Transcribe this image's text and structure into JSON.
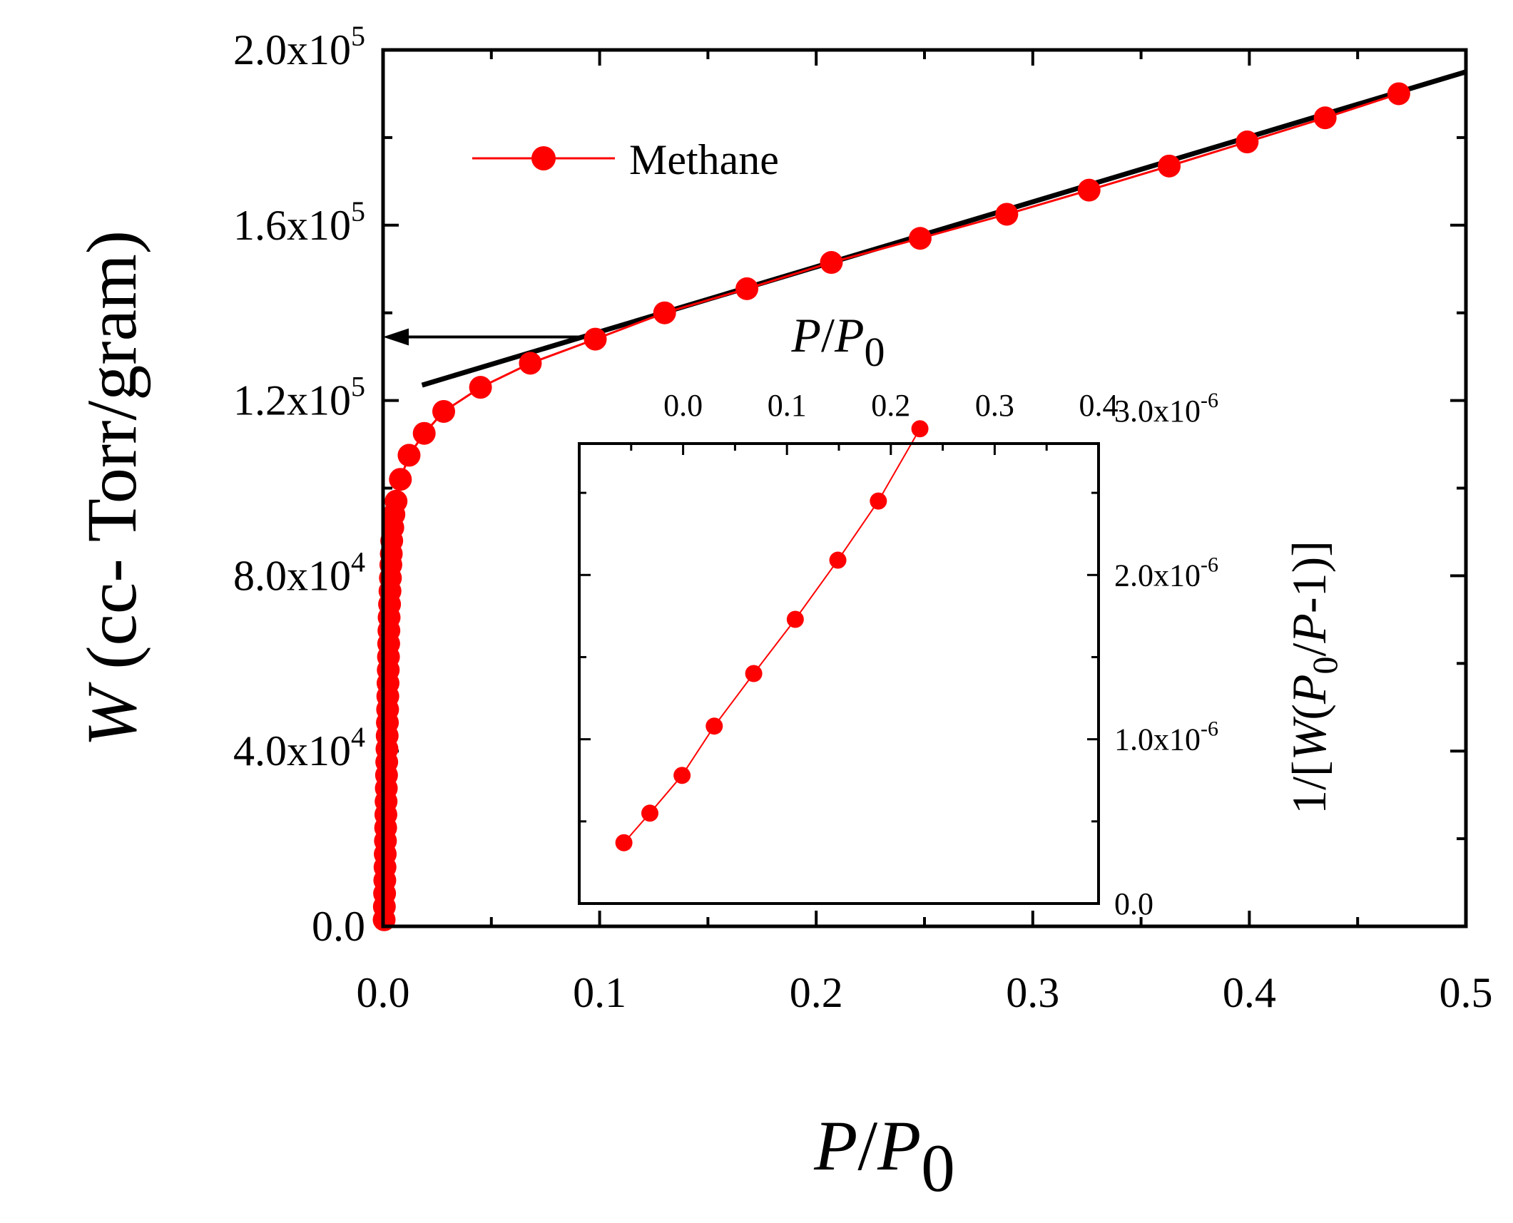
{
  "chart_data": [
    {
      "id": "main",
      "type": "line",
      "xlabel": {
        "italic": "P",
        "sep": "/",
        "italic2": "P",
        "sub": "0"
      },
      "ylabel": {
        "italic": "W",
        "rest": " (cc- Torr/gram)"
      },
      "xlim": [
        0.0,
        0.5
      ],
      "ylim": [
        0,
        200000
      ],
      "x_ticks": [
        "0.0",
        "0.1",
        "0.2",
        "0.3",
        "0.4",
        "0.5"
      ],
      "y_ticks": [
        {
          "base": "0.0",
          "exp": ""
        },
        {
          "base": "4.0x10",
          "exp": "4"
        },
        {
          "base": "8.0x10",
          "exp": "4"
        },
        {
          "base": "1.2x10",
          "exp": "5"
        },
        {
          "base": "1.6x10",
          "exp": "5"
        },
        {
          "base": "2.0x10",
          "exp": "5"
        }
      ],
      "series": [
        {
          "name": "Methane",
          "color": "#ff0000",
          "points": [
            [
              0.0005,
              1500
            ],
            [
              0.0006,
              4500
            ],
            [
              0.0007,
              7500
            ],
            [
              0.0008,
              10500
            ],
            [
              0.0009,
              13500
            ],
            [
              0.001,
              16500
            ],
            [
              0.0011,
              19500
            ],
            [
              0.0012,
              22500
            ],
            [
              0.0013,
              25500
            ],
            [
              0.0014,
              28500
            ],
            [
              0.0015,
              31500
            ],
            [
              0.0016,
              34500
            ],
            [
              0.0017,
              37500
            ],
            [
              0.0018,
              40500
            ],
            [
              0.0019,
              43500
            ],
            [
              0.002,
              46500
            ],
            [
              0.0021,
              49500
            ],
            [
              0.0022,
              52500
            ],
            [
              0.0023,
              55500
            ],
            [
              0.0024,
              58500
            ],
            [
              0.0025,
              61500
            ],
            [
              0.0026,
              64500
            ],
            [
              0.0027,
              67500
            ],
            [
              0.0028,
              70500
            ],
            [
              0.003,
              73500
            ],
            [
              0.0032,
              76500
            ],
            [
              0.0034,
              79500
            ],
            [
              0.0036,
              82500
            ],
            [
              0.0038,
              85000
            ],
            [
              0.004,
              88000
            ],
            [
              0.0045,
              91000
            ],
            [
              0.005,
              94000
            ],
            [
              0.006,
              97000
            ],
            [
              0.008,
              102000
            ],
            [
              0.012,
              107500
            ],
            [
              0.019,
              112500
            ],
            [
              0.028,
              117500
            ],
            [
              0.045,
              123000
            ],
            [
              0.068,
              128500
            ],
            [
              0.098,
              134000
            ],
            [
              0.13,
              140000
            ],
            [
              0.168,
              145500
            ],
            [
              0.207,
              151500
            ],
            [
              0.248,
              157000
            ],
            [
              0.288,
              162500
            ],
            [
              0.326,
              168000
            ],
            [
              0.363,
              173500
            ],
            [
              0.399,
              179000
            ],
            [
              0.435,
              184500
            ],
            [
              0.469,
              190000
            ]
          ]
        }
      ],
      "fit_line": {
        "color": "#000000",
        "points": [
          [
            0.018,
            123500
          ],
          [
            0.5,
            195000
          ]
        ]
      },
      "arrow": {
        "from": [
          0.092,
          134500
        ],
        "to": [
          0.0,
          134500
        ]
      },
      "legend": {
        "position": "top-left"
      }
    },
    {
      "id": "inset",
      "type": "line",
      "xlabel": {
        "italic": "P",
        "sep": "/",
        "italic2": "P",
        "sub": "0"
      },
      "ylabel": {
        "prefix": "1/[",
        "italic": "W",
        "mid": "(",
        "italic2": "P",
        "sub": "0",
        "mid2": "/",
        "italic3": "P",
        "suffix": "-1)]"
      },
      "xlim": [
        -0.1,
        0.4
      ],
      "ylim": [
        0,
        2.8e-06
      ],
      "x_ticks": [
        "0.0",
        "0.1",
        "0.2",
        "0.3",
        "0.4"
      ],
      "y_ticks": [
        {
          "base": "0.0",
          "exp": ""
        },
        {
          "base": "1.0x10",
          "exp": "-6"
        },
        {
          "base": "2.0x10",
          "exp": "-6"
        },
        {
          "base": "3.0x10",
          "exp": "-6"
        }
      ],
      "x_position": "top",
      "y_position": "right",
      "series": [
        {
          "color": "#ff0000",
          "points": [
            [
              -0.057,
              3.7e-07
            ],
            [
              -0.032,
              5.5e-07
            ],
            [
              -0.001,
              7.8e-07
            ],
            [
              0.03,
              1.08e-06
            ],
            [
              0.068,
              1.4e-06
            ],
            [
              0.108,
              1.73e-06
            ],
            [
              0.149,
              2.09e-06
            ],
            [
              0.188,
              2.45e-06
            ],
            [
              0.228,
              2.89e-06
            ]
          ]
        }
      ]
    }
  ]
}
